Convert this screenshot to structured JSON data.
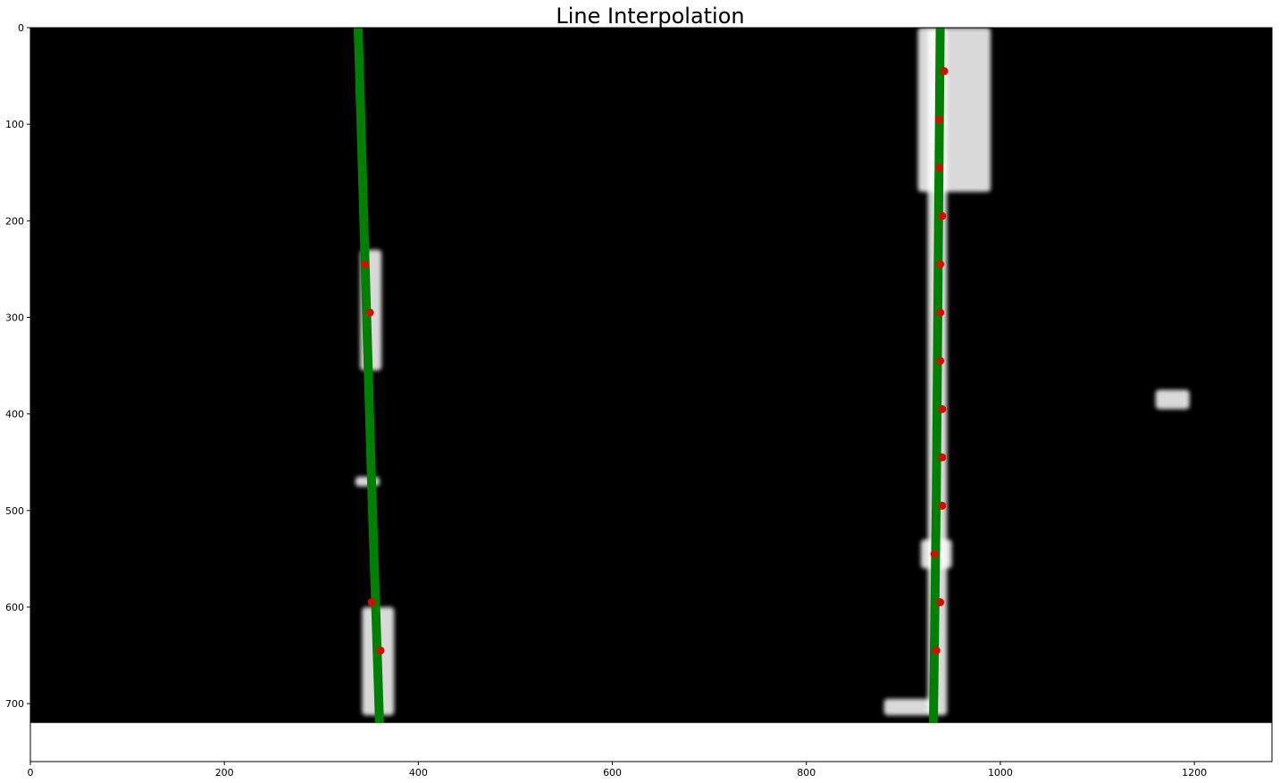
{
  "chart_data": {
    "type": "scatter",
    "title": "Line Interpolation",
    "xlabel": "",
    "ylabel": "",
    "xlim": [
      0,
      1280
    ],
    "ylim": [
      0,
      760
    ],
    "y_inverted": true,
    "image_height": 720,
    "x_ticks": [
      0,
      200,
      400,
      600,
      800,
      1000,
      1200
    ],
    "y_ticks": [
      0,
      100,
      200,
      300,
      400,
      500,
      600,
      700
    ],
    "grid": false,
    "legend": "none",
    "colors": {
      "background": "#000000",
      "fitted_line": "#008000",
      "points": "#cc1100",
      "lane_pixels": "#ffffff"
    },
    "series": [
      {
        "kind": "fitted-line",
        "lane": "left",
        "points": [
          [
            338,
            0
          ],
          [
            345,
            240
          ],
          [
            352,
            480
          ],
          [
            360,
            720
          ]
        ]
      },
      {
        "kind": "fitted-line",
        "lane": "right",
        "points": [
          [
            938,
            0
          ],
          [
            936,
            240
          ],
          [
            934,
            480
          ],
          [
            931,
            720
          ]
        ]
      },
      {
        "kind": "scatter",
        "lane": "left",
        "points": [
          [
            345,
            245
          ],
          [
            350,
            295
          ],
          [
            352,
            595
          ],
          [
            361,
            645
          ]
        ]
      },
      {
        "kind": "scatter",
        "lane": "right",
        "points": [
          [
            942,
            45
          ],
          [
            937,
            95
          ],
          [
            937,
            145
          ],
          [
            940,
            195
          ],
          [
            938,
            245
          ],
          [
            938,
            295
          ],
          [
            938,
            345
          ],
          [
            940,
            395
          ],
          [
            940,
            445
          ],
          [
            940,
            495
          ],
          [
            932,
            545
          ],
          [
            938,
            595
          ],
          [
            934,
            645
          ]
        ]
      }
    ],
    "lane_pixel_regions": [
      {
        "x": [
          340,
          362
        ],
        "y": [
          230,
          355
        ]
      },
      {
        "x": [
          342,
          375
        ],
        "y": [
          600,
          712
        ]
      },
      {
        "x": [
          335,
          360
        ],
        "y": [
          465,
          475
        ]
      },
      {
        "x": [
          915,
          990
        ],
        "y": [
          0,
          170
        ]
      },
      {
        "x": [
          925,
          945
        ],
        "y": [
          0,
          712
        ]
      },
      {
        "x": [
          918,
          950
        ],
        "y": [
          530,
          560
        ]
      },
      {
        "x": [
          880,
          935
        ],
        "y": [
          695,
          712
        ]
      },
      {
        "x": [
          1160,
          1195
        ],
        "y": [
          375,
          395
        ]
      }
    ]
  }
}
